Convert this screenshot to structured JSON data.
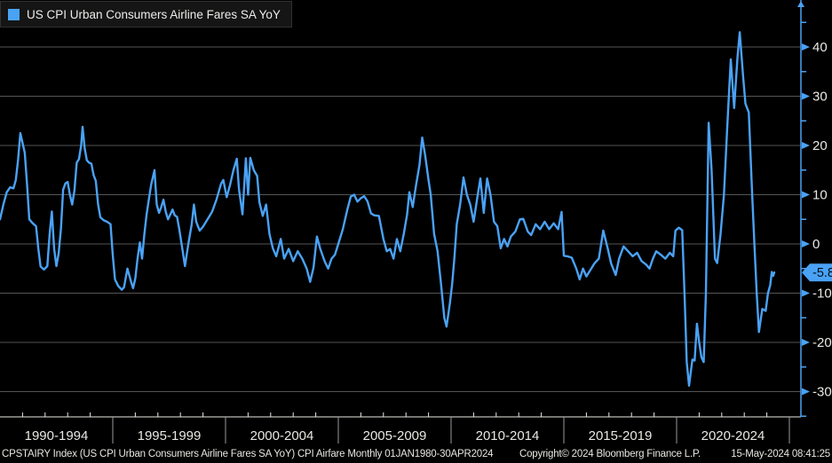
{
  "legend": {
    "label": "US CPI Urban Consumers Airline Fares SA YoY",
    "swatch_color": "#4aa2f5"
  },
  "footer": {
    "left": "CPSTAIRY Index (US CPI Urban Consumers Airline Fares SA YoY) CPI Airfare  Monthly 01JAN1980-30APR2024",
    "copyright": "Copyright© 2024 Bloomberg Finance L.P.",
    "timestamp": "15-May-2024 08:41:25"
  },
  "colors": {
    "background": "#000000",
    "line": "#4aa2f5",
    "axis": "#4aa2f5",
    "grid": "#555555",
    "tick_text": "#e8e8e4",
    "x_axis_line": "#e8e8e4",
    "segment_divider": "#9a9a9a",
    "badge_bg": "#4aa2f5",
    "badge_text": "#00101c",
    "legend_bg": "#151515"
  },
  "chart_data": {
    "type": "line",
    "title": "US CPI Urban Consumers Airline Fares SA YoY",
    "xlabel": "",
    "ylabel": "",
    "legend_position": "top-left",
    "grid": "on",
    "y_axis_side": "right",
    "y_ticks": [
      40,
      30,
      20,
      10,
      0,
      -10,
      -20,
      -30
    ],
    "y_minor_ticks": [
      45,
      35,
      25,
      15,
      5,
      -5,
      -15,
      -25,
      -35
    ],
    "ylim": [
      -32,
      45
    ],
    "x_segments": [
      "1990-1994",
      "1995-1999",
      "2000-2004",
      "2005-2009",
      "2010-2014",
      "2015-2019",
      "2020-2024"
    ],
    "x_segment_start_years": [
      1990,
      1995,
      2000,
      2005,
      2010,
      2015,
      2020
    ],
    "xlim_years": [
      1990,
      2025
    ],
    "last_value": -5.8,
    "last_value_label": "-5.8",
    "series": [
      {
        "name": "US CPI Urban Consumers Airline Fares SA YoY",
        "frequency": "monthly",
        "points": [
          [
            1990.0,
            5
          ],
          [
            1990.15,
            8
          ],
          [
            1990.3,
            10.5
          ],
          [
            1990.45,
            11.5
          ],
          [
            1990.6,
            11.3
          ],
          [
            1990.7,
            13
          ],
          [
            1990.8,
            17
          ],
          [
            1990.9,
            22.5
          ],
          [
            1991.0,
            20.5
          ],
          [
            1991.1,
            18.5
          ],
          [
            1991.2,
            12
          ],
          [
            1991.3,
            5
          ],
          [
            1991.45,
            4.2
          ],
          [
            1991.6,
            3.6
          ],
          [
            1991.7,
            -1
          ],
          [
            1991.8,
            -4.6
          ],
          [
            1991.95,
            -5.2
          ],
          [
            1992.1,
            -4.5
          ],
          [
            1992.2,
            2
          ],
          [
            1992.3,
            6.6
          ],
          [
            1992.4,
            -1
          ],
          [
            1992.5,
            -4.5
          ],
          [
            1992.6,
            -2
          ],
          [
            1992.7,
            3
          ],
          [
            1992.8,
            11
          ],
          [
            1992.9,
            12.3
          ],
          [
            1993.0,
            12.6
          ],
          [
            1993.1,
            10
          ],
          [
            1993.2,
            8
          ],
          [
            1993.3,
            10.8
          ],
          [
            1993.4,
            16.5
          ],
          [
            1993.5,
            17.2
          ],
          [
            1993.6,
            20
          ],
          [
            1993.66,
            23.8
          ],
          [
            1993.75,
            19.5
          ],
          [
            1993.85,
            17
          ],
          [
            1993.95,
            16.5
          ],
          [
            1994.05,
            16.3
          ],
          [
            1994.15,
            14
          ],
          [
            1994.25,
            12.8
          ],
          [
            1994.35,
            8
          ],
          [
            1994.45,
            5.4
          ],
          [
            1994.6,
            4.8
          ],
          [
            1994.75,
            4.5
          ],
          [
            1994.9,
            4
          ],
          [
            1995.0,
            -2.3
          ],
          [
            1995.1,
            -7.2
          ],
          [
            1995.25,
            -8.6
          ],
          [
            1995.4,
            -9.3
          ],
          [
            1995.5,
            -8.8
          ],
          [
            1995.65,
            -5
          ],
          [
            1995.8,
            -7.5
          ],
          [
            1995.9,
            -9
          ],
          [
            1996.0,
            -7
          ],
          [
            1996.1,
            -3
          ],
          [
            1996.2,
            0.3
          ],
          [
            1996.3,
            -3
          ],
          [
            1996.4,
            2
          ],
          [
            1996.5,
            6
          ],
          [
            1996.6,
            9
          ],
          [
            1996.7,
            12
          ],
          [
            1996.85,
            15
          ],
          [
            1996.95,
            8
          ],
          [
            1997.05,
            6.3
          ],
          [
            1997.15,
            7.5
          ],
          [
            1997.25,
            9
          ],
          [
            1997.35,
            6.5
          ],
          [
            1997.45,
            5
          ],
          [
            1997.55,
            6
          ],
          [
            1997.65,
            7
          ],
          [
            1997.75,
            5.8
          ],
          [
            1997.85,
            5.5
          ],
          [
            1997.95,
            3
          ],
          [
            1998.1,
            -1.4
          ],
          [
            1998.2,
            -4.5
          ],
          [
            1998.35,
            0
          ],
          [
            1998.5,
            4
          ],
          [
            1998.6,
            8
          ],
          [
            1998.7,
            4.5
          ],
          [
            1998.85,
            2.7
          ],
          [
            1999.0,
            3.5
          ],
          [
            1999.2,
            5
          ],
          [
            1999.4,
            6.5
          ],
          [
            1999.6,
            9
          ],
          [
            1999.8,
            12.2
          ],
          [
            1999.9,
            13
          ],
          [
            2000.05,
            9.5
          ],
          [
            2000.2,
            12
          ],
          [
            2000.35,
            15
          ],
          [
            2000.5,
            17.3
          ],
          [
            2000.6,
            11
          ],
          [
            2000.75,
            6
          ],
          [
            2000.9,
            17.4
          ],
          [
            2001.0,
            10
          ],
          [
            2001.1,
            17.5
          ],
          [
            2001.25,
            15
          ],
          [
            2001.4,
            13.8
          ],
          [
            2001.5,
            8.5
          ],
          [
            2001.65,
            5.7
          ],
          [
            2001.8,
            8
          ],
          [
            2001.95,
            2
          ],
          [
            2002.1,
            -0.9
          ],
          [
            2002.25,
            -2.5
          ],
          [
            2002.45,
            1
          ],
          [
            2002.6,
            -3
          ],
          [
            2002.8,
            -1
          ],
          [
            2003.0,
            -3.5
          ],
          [
            2003.2,
            -1.5
          ],
          [
            2003.4,
            -3
          ],
          [
            2003.6,
            -5
          ],
          [
            2003.75,
            -7.7
          ],
          [
            2003.9,
            -4.8
          ],
          [
            2004.05,
            1.5
          ],
          [
            2004.2,
            -1
          ],
          [
            2004.4,
            -3.6
          ],
          [
            2004.55,
            -5
          ],
          [
            2004.7,
            -3
          ],
          [
            2004.85,
            -2.2
          ],
          [
            2005.0,
            0
          ],
          [
            2005.2,
            3
          ],
          [
            2005.4,
            7
          ],
          [
            2005.55,
            9.6
          ],
          [
            2005.7,
            10
          ],
          [
            2005.85,
            8.6
          ],
          [
            2006.0,
            9.3
          ],
          [
            2006.15,
            9.7
          ],
          [
            2006.3,
            8.6
          ],
          [
            2006.45,
            6.2
          ],
          [
            2006.6,
            5.8
          ],
          [
            2006.8,
            5.7
          ],
          [
            2007.0,
            1
          ],
          [
            2007.15,
            -1.5
          ],
          [
            2007.3,
            -1
          ],
          [
            2007.45,
            -3
          ],
          [
            2007.6,
            1
          ],
          [
            2007.75,
            -1.5
          ],
          [
            2007.9,
            2
          ],
          [
            2008.05,
            6
          ],
          [
            2008.15,
            10.5
          ],
          [
            2008.3,
            7.5
          ],
          [
            2008.45,
            12
          ],
          [
            2008.6,
            16
          ],
          [
            2008.72,
            21.6
          ],
          [
            2008.85,
            18
          ],
          [
            2009.0,
            13
          ],
          [
            2009.1,
            10
          ],
          [
            2009.25,
            2
          ],
          [
            2009.4,
            -1.5
          ],
          [
            2009.55,
            -8
          ],
          [
            2009.7,
            -15
          ],
          [
            2009.8,
            -16.8
          ],
          [
            2009.95,
            -12
          ],
          [
            2010.05,
            -8
          ],
          [
            2010.15,
            -2.7
          ],
          [
            2010.25,
            4
          ],
          [
            2010.4,
            8
          ],
          [
            2010.55,
            13.5
          ],
          [
            2010.7,
            10
          ],
          [
            2010.85,
            8
          ],
          [
            2011.0,
            4.5
          ],
          [
            2011.15,
            9
          ],
          [
            2011.3,
            13.3
          ],
          [
            2011.45,
            6.3
          ],
          [
            2011.6,
            13.3
          ],
          [
            2011.75,
            10
          ],
          [
            2011.9,
            4.5
          ],
          [
            2012.05,
            3.6
          ],
          [
            2012.2,
            -0.9
          ],
          [
            2012.35,
            1
          ],
          [
            2012.5,
            -0.5
          ],
          [
            2012.65,
            1.5
          ],
          [
            2012.85,
            2.5
          ],
          [
            2013.05,
            5
          ],
          [
            2013.2,
            5.1
          ],
          [
            2013.4,
            2.5
          ],
          [
            2013.55,
            1.8
          ],
          [
            2013.75,
            4
          ],
          [
            2013.95,
            3
          ],
          [
            2014.15,
            4.5
          ],
          [
            2014.35,
            3
          ],
          [
            2014.55,
            4.2
          ],
          [
            2014.75,
            3
          ],
          [
            2014.9,
            6.5
          ],
          [
            2015.0,
            -2.4
          ],
          [
            2015.15,
            -2.5
          ],
          [
            2015.35,
            -2.8
          ],
          [
            2015.55,
            -5
          ],
          [
            2015.7,
            -7.2
          ],
          [
            2015.85,
            -5
          ],
          [
            2016.0,
            -6.6
          ],
          [
            2016.15,
            -5.5
          ],
          [
            2016.35,
            -4
          ],
          [
            2016.55,
            -3
          ],
          [
            2016.75,
            2.7
          ],
          [
            2016.95,
            -1
          ],
          [
            2017.1,
            -4
          ],
          [
            2017.3,
            -6.3
          ],
          [
            2017.45,
            -3
          ],
          [
            2017.65,
            -0.5
          ],
          [
            2017.85,
            -1.5
          ],
          [
            2018.05,
            -2.5
          ],
          [
            2018.25,
            -1.8
          ],
          [
            2018.45,
            -3.5
          ],
          [
            2018.65,
            -4.2
          ],
          [
            2018.8,
            -5
          ],
          [
            2018.95,
            -3
          ],
          [
            2019.1,
            -1.5
          ],
          [
            2019.3,
            -2.2
          ],
          [
            2019.5,
            -3
          ],
          [
            2019.7,
            -1.8
          ],
          [
            2019.85,
            -2.5
          ],
          [
            2019.95,
            2.7
          ],
          [
            2020.1,
            3.3
          ],
          [
            2020.25,
            2.8
          ],
          [
            2020.35,
            -10
          ],
          [
            2020.45,
            -24
          ],
          [
            2020.55,
            -28.8
          ],
          [
            2020.7,
            -23.5
          ],
          [
            2020.8,
            -23.7
          ],
          [
            2020.9,
            -16.2
          ],
          [
            2021.0,
            -20
          ],
          [
            2021.1,
            -23
          ],
          [
            2021.2,
            -24
          ],
          [
            2021.3,
            -10
          ],
          [
            2021.42,
            24.6
          ],
          [
            2021.55,
            15
          ],
          [
            2021.7,
            -3
          ],
          [
            2021.8,
            -3.9
          ],
          [
            2021.95,
            2
          ],
          [
            2022.1,
            10
          ],
          [
            2022.25,
            24
          ],
          [
            2022.4,
            37.5
          ],
          [
            2022.55,
            27.6
          ],
          [
            2022.7,
            38
          ],
          [
            2022.8,
            43
          ],
          [
            2022.95,
            34
          ],
          [
            2023.05,
            28.5
          ],
          [
            2023.2,
            26.7
          ],
          [
            2023.35,
            10
          ],
          [
            2023.45,
            0
          ],
          [
            2023.55,
            -10
          ],
          [
            2023.65,
            -17.9
          ],
          [
            2023.8,
            -13.2
          ],
          [
            2023.95,
            -13.6
          ],
          [
            2024.05,
            -10
          ],
          [
            2024.15,
            -8.4
          ],
          [
            2024.22,
            -5.7
          ],
          [
            2024.28,
            -6.5
          ],
          [
            2024.33,
            -5.8
          ]
        ]
      }
    ]
  }
}
